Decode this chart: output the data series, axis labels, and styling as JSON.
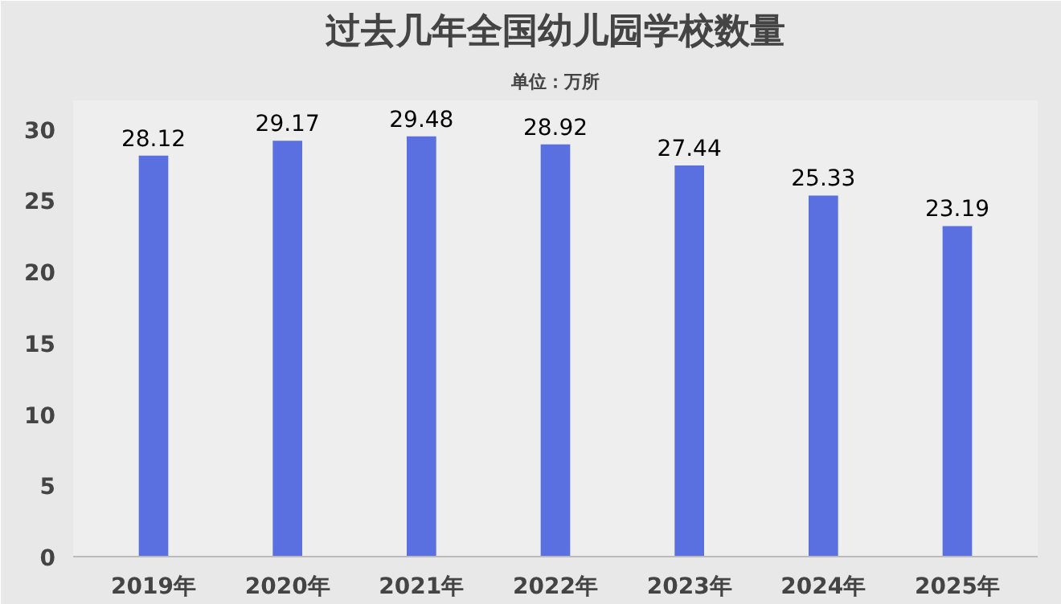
{
  "chart_data": {
    "type": "bar",
    "title": "过去几年全国幼儿园学校数量",
    "subtitle": "单位：万所",
    "categories": [
      "2019年",
      "2020年",
      "2021年",
      "2022年",
      "2023年",
      "2024年",
      "2025年"
    ],
    "values": [
      28.12,
      29.17,
      29.48,
      28.92,
      27.44,
      25.33,
      23.19
    ],
    "color": "#5a6fe0",
    "data_labels": true,
    "grid": false,
    "ylim": [
      0,
      32
    ],
    "yticks": [
      0,
      5,
      10,
      15,
      20,
      25,
      30
    ]
  }
}
